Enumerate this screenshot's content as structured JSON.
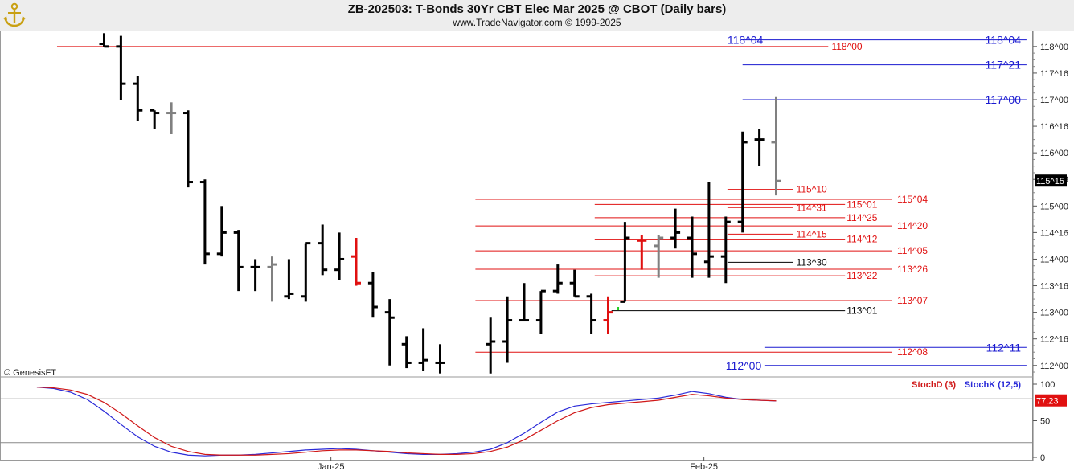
{
  "header": {
    "title": "ZB-202503:  T-Bonds 30Yr CBT Elec Mar 2025 @ CBOT  (Daily bars)",
    "subtitle": "www.TradeNavigator.com © 1999-2025",
    "logo_icon": "anchor-icon"
  },
  "watermark": "© GenesisFT",
  "colors": {
    "red": "#e01010",
    "blue": "#1a1ad0",
    "black": "#000000",
    "gray": "#808080",
    "green": "#22cc22",
    "stoch_d": "#d01818",
    "stoch_k": "#2a2ad8"
  },
  "chart_data": [
    {
      "type": "ohlc",
      "name": "price",
      "ylim": [
        111.8,
        118.3
      ],
      "y_tick_labels": [
        "118^00",
        "117^16",
        "117^00",
        "116^16",
        "116^00",
        "115^16",
        "115^00",
        "114^16",
        "114^00",
        "113^16",
        "113^00",
        "112^16",
        "112^00"
      ],
      "y_tick_values": [
        118.0,
        117.5,
        117.0,
        116.5,
        116.0,
        115.5,
        115.0,
        114.5,
        114.0,
        113.5,
        113.0,
        112.5,
        112.0
      ],
      "x_tick_labels": [
        "Jan-25",
        "Feb-25"
      ],
      "x_tick_indices": [
        18.5,
        40.7
      ],
      "last_price_label": "115^15",
      "last_price": 115.47,
      "bars": [
        {
          "i": 5,
          "o": 118.05,
          "h": 118.25,
          "l": 118.0,
          "c": 118.0,
          "color": "black"
        },
        {
          "i": 6,
          "o": 118.0,
          "h": 118.2,
          "l": 117.0,
          "c": 117.3,
          "color": "black"
        },
        {
          "i": 7,
          "o": 117.3,
          "h": 117.45,
          "l": 116.6,
          "c": 116.8,
          "color": "black"
        },
        {
          "i": 8,
          "o": 116.8,
          "h": 116.8,
          "l": 116.45,
          "c": 116.75,
          "color": "black"
        },
        {
          "i": 9,
          "o": 116.75,
          "h": 116.95,
          "l": 116.35,
          "c": 116.75,
          "color": "gray"
        },
        {
          "i": 10,
          "o": 116.75,
          "h": 116.8,
          "l": 115.35,
          "c": 115.45,
          "color": "black"
        },
        {
          "i": 11,
          "o": 115.45,
          "h": 115.5,
          "l": 113.9,
          "c": 114.1,
          "color": "black"
        },
        {
          "i": 12,
          "o": 114.1,
          "h": 115.0,
          "l": 114.05,
          "c": 114.5,
          "color": "black"
        },
        {
          "i": 13,
          "o": 114.5,
          "h": 114.55,
          "l": 113.4,
          "c": 113.85,
          "color": "black"
        },
        {
          "i": 14,
          "o": 113.85,
          "h": 114.0,
          "l": 113.4,
          "c": 113.85,
          "color": "black"
        },
        {
          "i": 15,
          "o": 113.85,
          "h": 114.05,
          "l": 113.2,
          "c": 113.9,
          "color": "gray"
        },
        {
          "i": 16,
          "o": 113.3,
          "h": 114.0,
          "l": 113.25,
          "c": 113.35,
          "color": "black"
        },
        {
          "i": 17,
          "o": 113.3,
          "h": 114.3,
          "l": 113.2,
          "c": 114.3,
          "color": "black"
        },
        {
          "i": 18,
          "o": 114.3,
          "h": 114.65,
          "l": 113.7,
          "c": 113.8,
          "color": "black"
        },
        {
          "i": 19,
          "o": 113.8,
          "h": 114.5,
          "l": 113.6,
          "c": 114.0,
          "color": "black"
        },
        {
          "i": 20,
          "o": 114.05,
          "h": 114.4,
          "l": 113.5,
          "c": 113.55,
          "color": "red"
        },
        {
          "i": 21,
          "o": 113.55,
          "h": 113.75,
          "l": 112.9,
          "c": 113.1,
          "color": "black"
        },
        {
          "i": 22,
          "o": 113.0,
          "h": 113.25,
          "l": 112.0,
          "c": 112.9,
          "color": "black"
        },
        {
          "i": 23,
          "o": 112.4,
          "h": 112.55,
          "l": 111.95,
          "c": 112.05,
          "color": "black"
        },
        {
          "i": 24,
          "o": 112.05,
          "h": 112.7,
          "l": 111.9,
          "c": 112.1,
          "color": "black"
        },
        {
          "i": 25,
          "o": 112.05,
          "h": 112.4,
          "l": 111.85,
          "c": 112.05,
          "color": "black"
        },
        {
          "i": 28,
          "o": 112.4,
          "h": 112.9,
          "l": 111.85,
          "c": 112.45,
          "color": "black"
        },
        {
          "i": 29,
          "o": 112.45,
          "h": 113.3,
          "l": 112.05,
          "c": 112.85,
          "color": "black"
        },
        {
          "i": 30,
          "o": 112.85,
          "h": 113.55,
          "l": 112.85,
          "c": 112.85,
          "color": "black"
        },
        {
          "i": 31,
          "o": 112.85,
          "h": 113.4,
          "l": 112.6,
          "c": 113.4,
          "color": "black"
        },
        {
          "i": 32,
          "o": 113.4,
          "h": 113.9,
          "l": 113.35,
          "c": 113.55,
          "color": "black"
        },
        {
          "i": 33,
          "o": 113.55,
          "h": 113.8,
          "l": 113.3,
          "c": 113.3,
          "color": "black"
        },
        {
          "i": 34,
          "o": 113.3,
          "h": 113.35,
          "l": 112.6,
          "c": 112.85,
          "color": "black"
        },
        {
          "i": 35,
          "o": 112.85,
          "h": 113.3,
          "l": 112.6,
          "c": 113.0,
          "color": "red"
        },
        {
          "i": 36,
          "o": 113.2,
          "h": 114.7,
          "l": 113.2,
          "c": 114.4,
          "color": "black"
        },
        {
          "i": 37,
          "o": 114.35,
          "h": 114.45,
          "l": 113.8,
          "c": 114.35,
          "color": "red"
        },
        {
          "i": 38,
          "o": 114.25,
          "h": 114.45,
          "l": 113.65,
          "c": 114.4,
          "color": "gray"
        },
        {
          "i": 39,
          "o": 114.4,
          "h": 114.95,
          "l": 114.2,
          "c": 114.5,
          "color": "black"
        },
        {
          "i": 40,
          "o": 114.4,
          "h": 114.8,
          "l": 113.65,
          "c": 114.1,
          "color": "black"
        },
        {
          "i": 41,
          "o": 113.95,
          "h": 115.45,
          "l": 113.65,
          "c": 114.05,
          "color": "black"
        },
        {
          "i": 42,
          "o": 114.05,
          "h": 114.8,
          "l": 113.55,
          "c": 114.7,
          "color": "black"
        },
        {
          "i": 43,
          "o": 114.7,
          "h": 116.4,
          "l": 114.5,
          "c": 116.2,
          "color": "black"
        },
        {
          "i": 44,
          "o": 116.25,
          "h": 116.45,
          "l": 115.75,
          "c": 116.25,
          "color": "black"
        },
        {
          "i": 45,
          "o": 116.2,
          "h": 117.05,
          "l": 115.2,
          "c": 115.47,
          "color": "gray"
        }
      ],
      "green_tick": {
        "i": 35.6,
        "y": 113.1
      },
      "levels": [
        {
          "label": "118^04",
          "value": 118.125,
          "color": "blue",
          "x_from": 43.0,
          "x_to": 59.9,
          "label_pos": "right"
        },
        {
          "label": "118^04",
          "value": 118.125,
          "color": "blue",
          "label_pos": "left_at",
          "label_i": 42.1
        },
        {
          "label": "117^21",
          "value": 117.656,
          "color": "blue",
          "x_from": 43.0,
          "x_to": 59.9,
          "label_pos": "right"
        },
        {
          "label": "117^00",
          "value": 117.0,
          "color": "blue",
          "x_from": 43.0,
          "x_to": 59.9,
          "label_pos": "right"
        },
        {
          "label": "118^00",
          "value": 118.0,
          "color": "red",
          "x_from": 2.2,
          "x_to": 48.1,
          "label_pos": "mid",
          "label_i": 48.3
        },
        {
          "label": "115^10",
          "value": 115.3125,
          "color": "red",
          "x_from": 42.1,
          "x_to": 46.0,
          "label_pos": "mid",
          "label_i": 46.2
        },
        {
          "label": "115^04",
          "value": 115.125,
          "color": "red",
          "x_from": 27.1,
          "x_to": 51.9,
          "label_pos": "mid",
          "label_i": 52.2
        },
        {
          "label": "115^01",
          "value": 115.03,
          "color": "red",
          "x_from": 34.2,
          "x_to": 49.1,
          "label_pos": "mid",
          "label_i": 49.2
        },
        {
          "label": "114^31",
          "value": 114.97,
          "color": "red",
          "x_from": 42.1,
          "x_to": 46.0,
          "label_pos": "mid",
          "label_i": 46.2
        },
        {
          "label": "114^25",
          "value": 114.78,
          "color": "red",
          "x_from": 34.2,
          "x_to": 49.1,
          "label_pos": "mid",
          "label_i": 49.2
        },
        {
          "label": "114^20",
          "value": 114.625,
          "color": "red",
          "x_from": 27.1,
          "x_to": 51.9,
          "label_pos": "mid",
          "label_i": 52.2
        },
        {
          "label": "114^15",
          "value": 114.47,
          "color": "red",
          "x_from": 42.1,
          "x_to": 46.0,
          "label_pos": "mid",
          "label_i": 46.2
        },
        {
          "label": "114^12",
          "value": 114.375,
          "color": "red",
          "x_from": 34.2,
          "x_to": 49.1,
          "label_pos": "mid",
          "label_i": 49.2
        },
        {
          "label": "114^05",
          "value": 114.156,
          "color": "red",
          "x_from": 27.1,
          "x_to": 51.9,
          "label_pos": "mid",
          "label_i": 52.2
        },
        {
          "label": "113^30",
          "value": 113.94,
          "color": "black",
          "x_from": 42.1,
          "x_to": 46.0,
          "label_pos": "mid",
          "label_i": 46.2
        },
        {
          "label": "113^26",
          "value": 113.81,
          "color": "red",
          "x_from": 27.1,
          "x_to": 51.9,
          "label_pos": "mid",
          "label_i": 52.2
        },
        {
          "label": "113^22",
          "value": 113.6875,
          "color": "red",
          "x_from": 34.2,
          "x_to": 49.1,
          "label_pos": "mid",
          "label_i": 49.2
        },
        {
          "label": "113^07",
          "value": 113.22,
          "color": "red",
          "x_from": 27.1,
          "x_to": 51.9,
          "label_pos": "mid",
          "label_i": 52.2
        },
        {
          "label": "113^01",
          "value": 113.03,
          "color": "black",
          "x_from": 35.2,
          "x_to": 49.1,
          "label_pos": "mid",
          "label_i": 49.2
        },
        {
          "label": "112^11",
          "value": 112.34,
          "color": "blue",
          "x_from": 44.3,
          "x_to": 59.9,
          "label_pos": "right"
        },
        {
          "label": "112^08",
          "value": 112.25,
          "color": "red",
          "x_from": 27.1,
          "x_to": 51.9,
          "label_pos": "mid",
          "label_i": 52.2
        },
        {
          "label": "112^00",
          "value": 112.0,
          "color": "blue",
          "x_from": 44.3,
          "x_to": 59.9,
          "label_pos": "left_at",
          "label_i": 42.0
        }
      ]
    },
    {
      "type": "line",
      "name": "stochastic",
      "ylim": [
        0,
        100
      ],
      "y_tick_values": [
        0,
        50,
        100
      ],
      "y_tick_labels": [
        "0",
        "50",
        "100"
      ],
      "reference_lines": [
        80,
        20
      ],
      "last_value_label": "77.23",
      "last_value": 77.23,
      "series": [
        {
          "name": "StochD (3)",
          "color": "stoch_d",
          "points": [
            [
              1,
              96
            ],
            [
              2,
              95
            ],
            [
              3,
              92
            ],
            [
              4,
              86
            ],
            [
              5,
              75
            ],
            [
              6,
              60
            ],
            [
              7,
              43
            ],
            [
              8,
              27
            ],
            [
              9,
              15
            ],
            [
              10,
              8
            ],
            [
              11,
              4
            ],
            [
              12,
              3
            ],
            [
              13,
              3
            ],
            [
              14,
              3
            ],
            [
              15,
              4
            ],
            [
              16,
              5
            ],
            [
              17,
              7
            ],
            [
              18,
              9
            ],
            [
              19,
              10
            ],
            [
              20,
              10
            ],
            [
              21,
              9
            ],
            [
              22,
              8
            ],
            [
              23,
              6
            ],
            [
              24,
              5
            ],
            [
              25,
              4
            ],
            [
              26,
              4
            ],
            [
              27,
              5
            ],
            [
              28,
              8
            ],
            [
              29,
              14
            ],
            [
              30,
              24
            ],
            [
              31,
              37
            ],
            [
              32,
              50
            ],
            [
              33,
              61
            ],
            [
              34,
              68
            ],
            [
              35,
              72
            ],
            [
              36,
              74
            ],
            [
              37,
              76
            ],
            [
              38,
              78
            ],
            [
              39,
              82
            ],
            [
              40,
              86
            ],
            [
              41,
              84
            ],
            [
              42,
              81
            ],
            [
              43,
              79
            ],
            [
              44,
              78
            ],
            [
              45,
              77.23
            ]
          ]
        },
        {
          "name": "StochK (12,5)",
          "color": "stoch_k",
          "points": [
            [
              1,
              96
            ],
            [
              2,
              94
            ],
            [
              3,
              89
            ],
            [
              4,
              79
            ],
            [
              5,
              63
            ],
            [
              6,
              45
            ],
            [
              7,
              28
            ],
            [
              8,
              15
            ],
            [
              9,
              7
            ],
            [
              10,
              3
            ],
            [
              11,
              2
            ],
            [
              12,
              3
            ],
            [
              13,
              3
            ],
            [
              14,
              4
            ],
            [
              15,
              6
            ],
            [
              16,
              8
            ],
            [
              17,
              10
            ],
            [
              18,
              11
            ],
            [
              19,
              12
            ],
            [
              20,
              11
            ],
            [
              21,
              9
            ],
            [
              22,
              7
            ],
            [
              23,
              5
            ],
            [
              24,
              4
            ],
            [
              25,
              4
            ],
            [
              26,
              5
            ],
            [
              27,
              7
            ],
            [
              28,
              11
            ],
            [
              29,
              20
            ],
            [
              30,
              33
            ],
            [
              31,
              48
            ],
            [
              32,
              62
            ],
            [
              33,
              70
            ],
            [
              34,
              73
            ],
            [
              35,
              75
            ],
            [
              36,
              77
            ],
            [
              37,
              79
            ],
            [
              38,
              81
            ],
            [
              39,
              85
            ],
            [
              40,
              90
            ],
            [
              41,
              87
            ],
            [
              42,
              82
            ],
            [
              43,
              79
            ],
            [
              44,
              78
            ],
            [
              45,
              77
            ]
          ]
        }
      ]
    }
  ]
}
